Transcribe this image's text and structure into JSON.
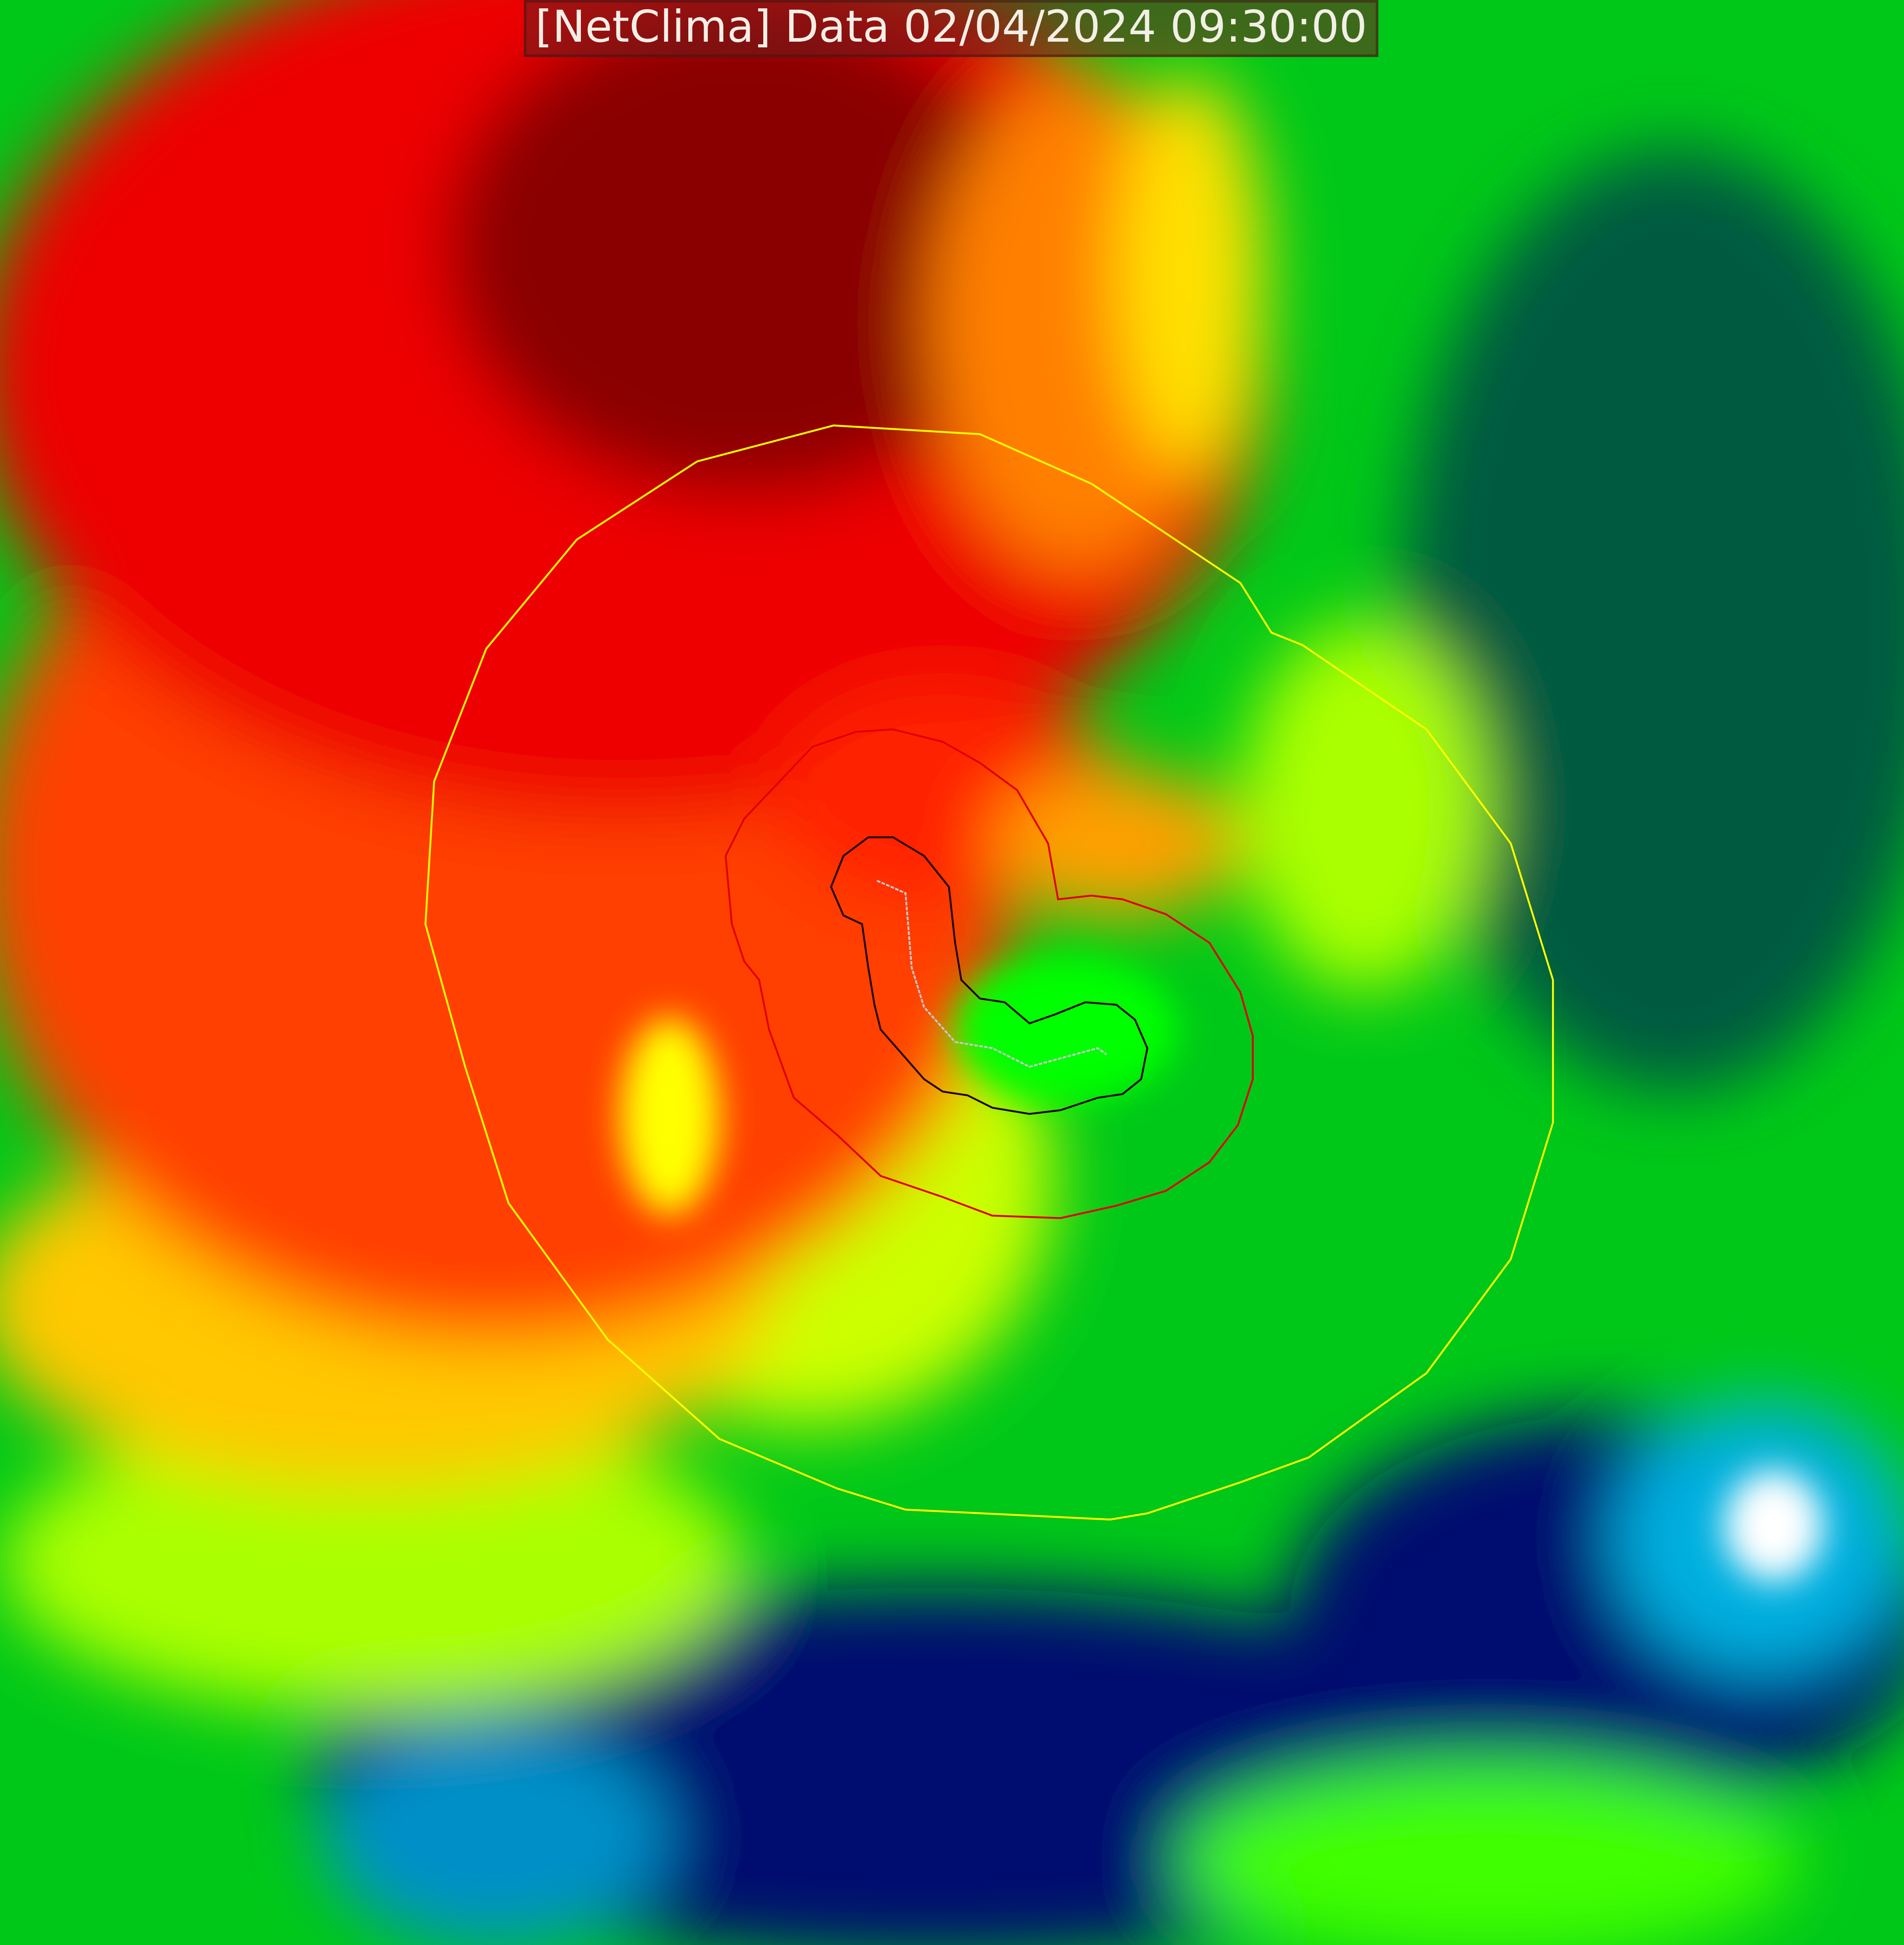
{
  "title": "[NetClima] Data 02/04/2024 09:30:00",
  "colors": {
    "dark_red": "#7a0000",
    "red": "#ff1a00",
    "orange": "#ff8000",
    "yellow": "#ffff00",
    "lime": "#aaff00",
    "green": "#00e000",
    "dark_green": "#006040",
    "navy": "#000070",
    "blue": "#0070c0",
    "cyan": "#00ffff",
    "white": "#ffffff",
    "contour_outer": "#ffff00",
    "contour_middle": "#e00000",
    "contour_inner": "#200000",
    "track": "#c0c0c0"
  },
  "legend": []
}
